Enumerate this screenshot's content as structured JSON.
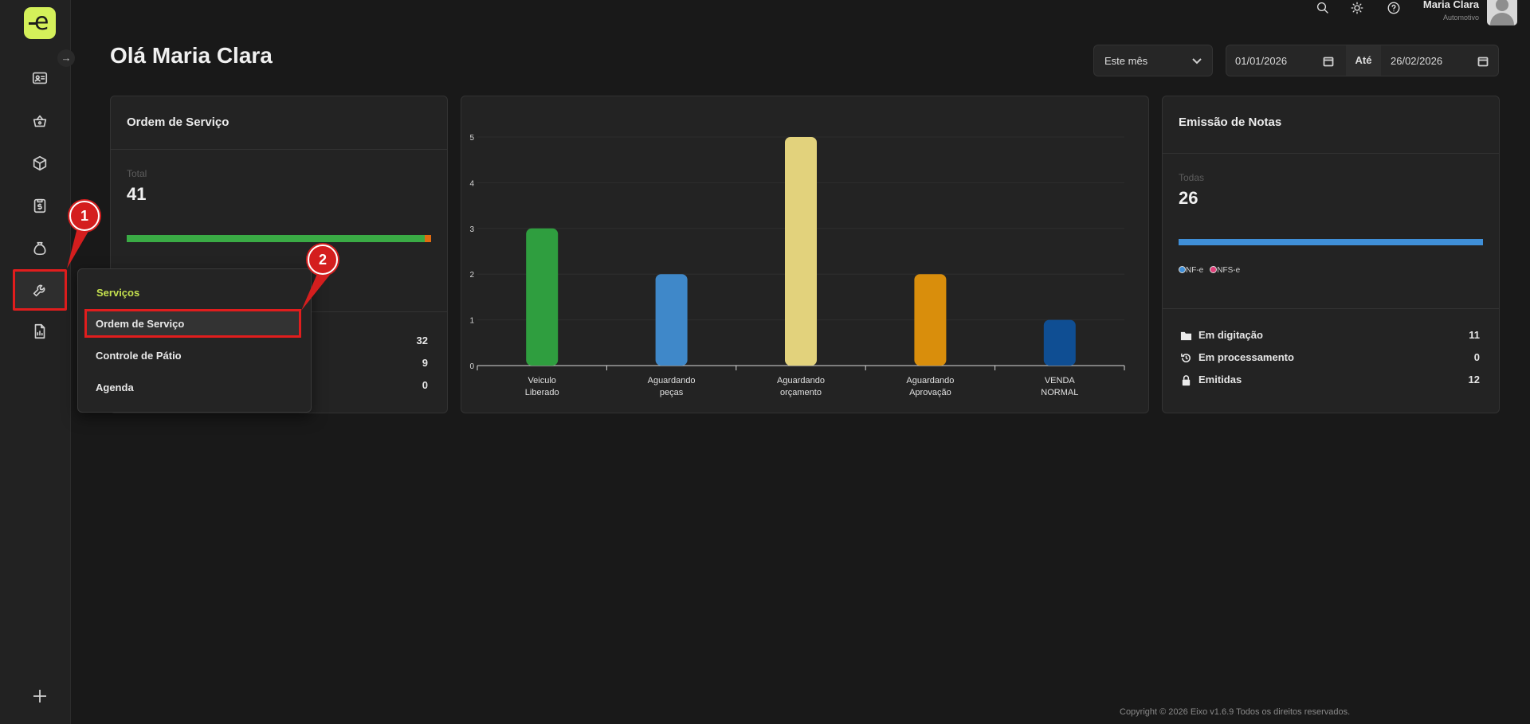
{
  "app": {
    "logo_letter": "e"
  },
  "user": {
    "name": "Maria Clara",
    "role": "Automotivo"
  },
  "greeting": "Olá Maria Clara",
  "filters": {
    "period": "Este mês",
    "date_from": "01/01/2026",
    "until_label": "Até",
    "date_to": "26/02/2026"
  },
  "service_orders": {
    "title": "Ordem de Serviço",
    "total_label": "Total",
    "total": "41",
    "progress_fraction": 0.98,
    "rows": [
      {
        "value": "32"
      },
      {
        "value": "9"
      },
      {
        "value": "0"
      }
    ]
  },
  "chart_data": {
    "type": "bar",
    "categories": [
      [
        "Veiculo",
        "Liberado"
      ],
      [
        "Aguardando",
        "peças"
      ],
      [
        "Aguardando",
        "orçamento"
      ],
      [
        "Aguardando",
        "Aprovação"
      ],
      [
        "VENDA",
        "NORMAL"
      ]
    ],
    "values": [
      3,
      2,
      5,
      2,
      1
    ],
    "colors": [
      "#2f9e3f",
      "#3f88c9",
      "#e2d27c",
      "#d98e0c",
      "#0f4e93"
    ],
    "yticks": [
      0,
      1,
      2,
      3,
      4,
      5
    ],
    "ylim": [
      0,
      5
    ],
    "grid": true
  },
  "invoices": {
    "title": "Emissão de Notas",
    "all_label": "Todas",
    "total": "26",
    "legend": [
      {
        "label": "NF-e",
        "color": "#3f8fd8"
      },
      {
        "label": "NFS-e",
        "color": "#e0407a"
      }
    ],
    "rows": [
      {
        "label": "Em digitação",
        "value": "11",
        "icon": "folder-icon"
      },
      {
        "label": "Em processamento",
        "value": "0",
        "icon": "history-icon"
      },
      {
        "label": "Emitidas",
        "value": "12",
        "icon": "lock-icon"
      }
    ]
  },
  "menu": {
    "header": "Serviços",
    "items": [
      "Ordem de Serviço",
      "Controle de Pátio",
      "Agenda"
    ]
  },
  "annotations": {
    "step1": "1",
    "step2": "2"
  },
  "footer": "Copyright © 2026 Eixo v1.6.9 Todos os direitos reservados."
}
